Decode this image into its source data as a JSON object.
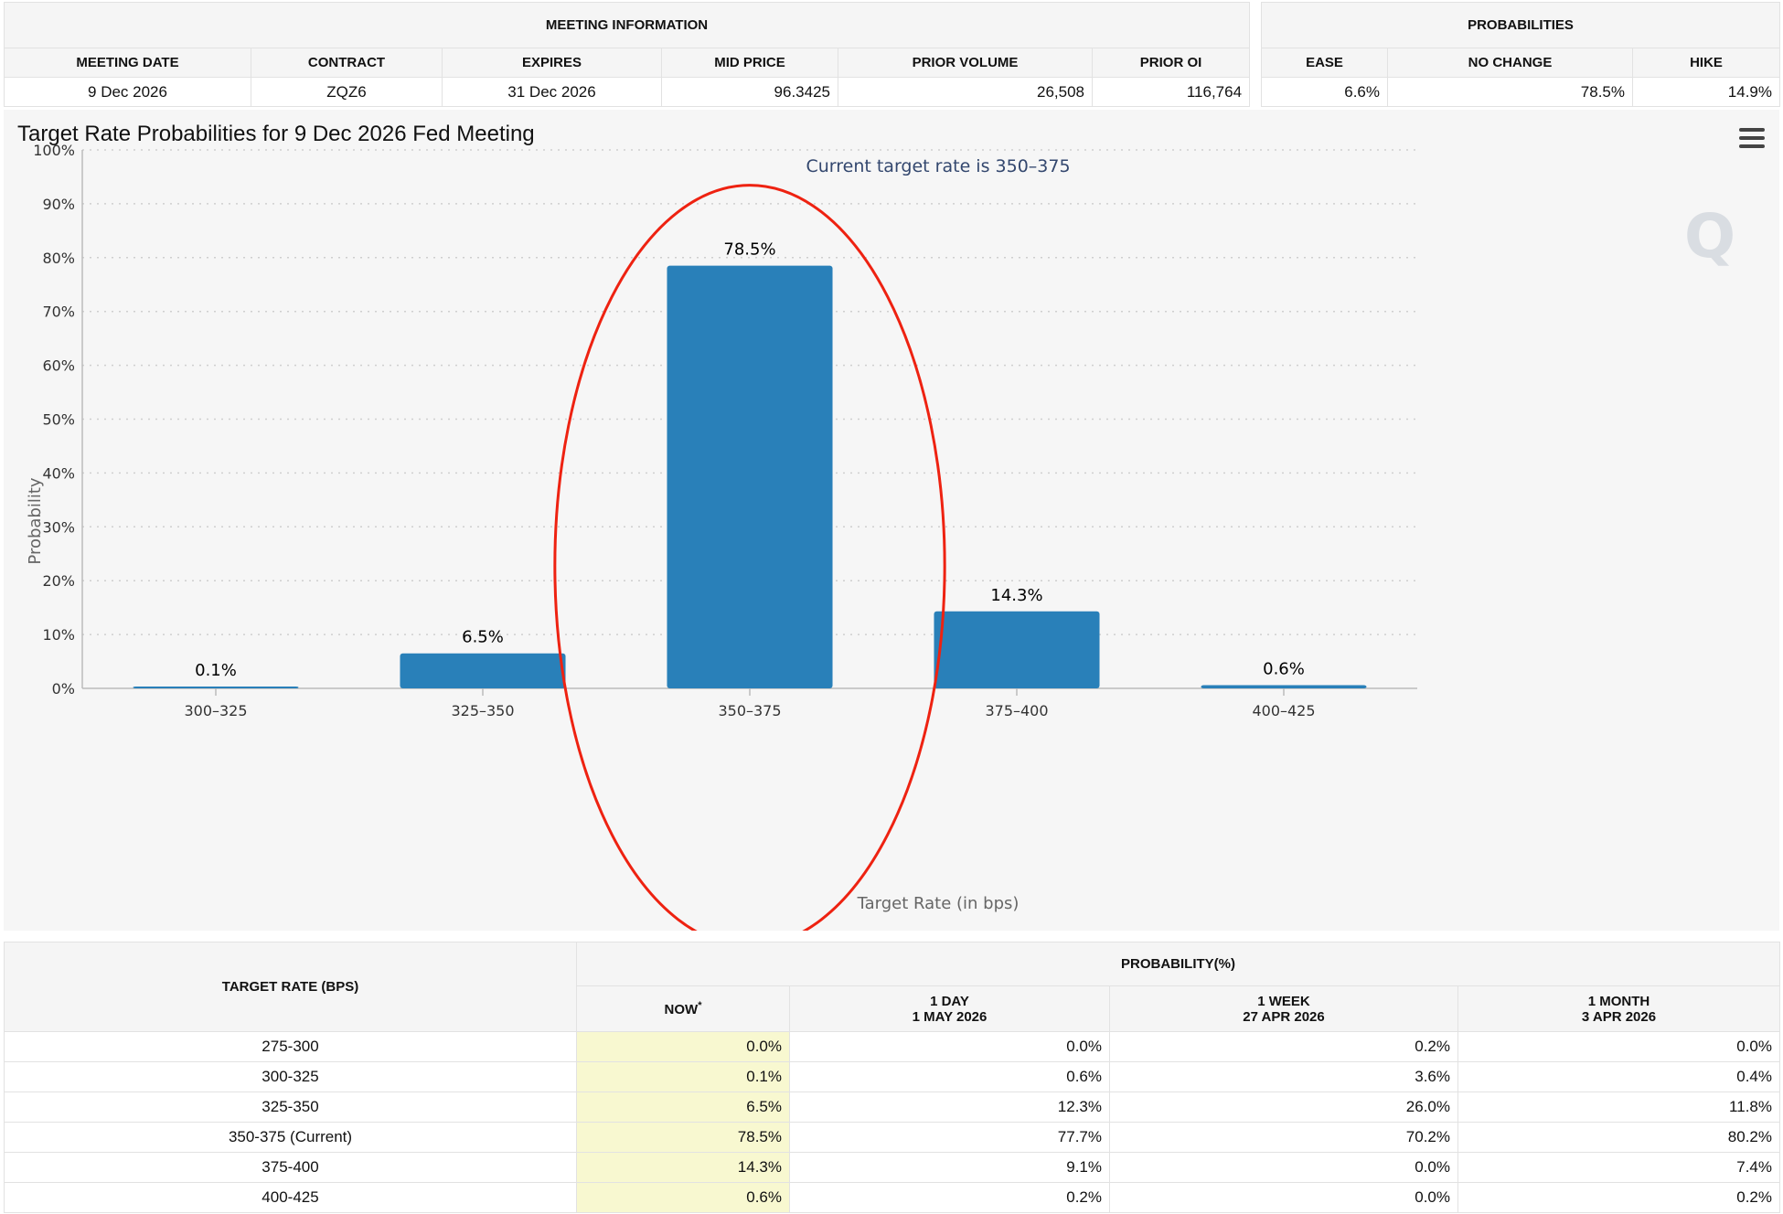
{
  "meeting_info": {
    "section_title": "MEETING INFORMATION",
    "headers": [
      "MEETING DATE",
      "CONTRACT",
      "EXPIRES",
      "MID PRICE",
      "PRIOR VOLUME",
      "PRIOR OI"
    ],
    "values": [
      "9 Dec 2026",
      "ZQZ6",
      "31 Dec 2026",
      "96.3425",
      "26,508",
      "116,764"
    ]
  },
  "probabilities": {
    "section_title": "PROBABILITIES",
    "headers": [
      "EASE",
      "NO CHANGE",
      "HIKE"
    ],
    "values": [
      "6.6%",
      "78.5%",
      "14.9%"
    ]
  },
  "chart_data": {
    "type": "bar",
    "title": "Target Rate Probabilities for 9 Dec 2026 Fed Meeting",
    "subtitle": "Current target rate is 350–375",
    "xlabel": "Target Rate (in bps)",
    "ylabel": "Probability",
    "categories": [
      "300–325",
      "325–350",
      "350–375",
      "375–400",
      "400–425"
    ],
    "values": [
      0.1,
      6.5,
      78.5,
      14.3,
      0.6
    ],
    "data_labels": [
      "0.1%",
      "6.5%",
      "78.5%",
      "14.3%",
      "0.6%"
    ],
    "ylim": [
      0,
      100
    ],
    "yticks": [
      "0%",
      "10%",
      "20%",
      "30%",
      "40%",
      "50%",
      "60%",
      "70%",
      "80%",
      "90%",
      "100%"
    ],
    "grid": true,
    "bar_color": "#2980b9",
    "highlight_color": "#ee2211",
    "highlighted_category": "350–375"
  },
  "prob_table": {
    "rate_header": "TARGET RATE (BPS)",
    "group_header": "PROBABILITY(%)",
    "columns": [
      {
        "line1": "NOW",
        "line2": "",
        "marker": "*"
      },
      {
        "line1": "1 DAY",
        "line2": "1 MAY 2026",
        "marker": ""
      },
      {
        "line1": "1 WEEK",
        "line2": "27 APR 2026",
        "marker": ""
      },
      {
        "line1": "1 MONTH",
        "line2": "3 APR 2026",
        "marker": ""
      }
    ],
    "rows": [
      {
        "rate": "275-300",
        "values": [
          "0.0%",
          "0.0%",
          "0.2%",
          "0.0%"
        ]
      },
      {
        "rate": "300-325",
        "values": [
          "0.1%",
          "0.6%",
          "3.6%",
          "0.4%"
        ]
      },
      {
        "rate": "325-350",
        "values": [
          "6.5%",
          "12.3%",
          "26.0%",
          "11.8%"
        ]
      },
      {
        "rate": "350-375 (Current)",
        "values": [
          "78.5%",
          "77.7%",
          "70.2%",
          "80.2%"
        ]
      },
      {
        "rate": "375-400",
        "values": [
          "14.3%",
          "9.1%",
          "0.0%",
          "7.4%"
        ]
      },
      {
        "rate": "400-425",
        "values": [
          "0.6%",
          "0.2%",
          "0.0%",
          "0.2%"
        ]
      }
    ]
  }
}
